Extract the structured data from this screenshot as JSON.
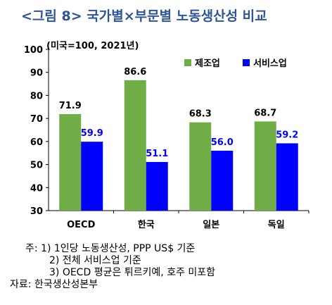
{
  "title": "<그림 8> 국가별×부문별 노동생산성 비교",
  "chart_data": {
    "type": "bar",
    "subtitle": "(미국=100, 2021년)",
    "categories": [
      "OECD",
      "한국",
      "일본",
      "독일"
    ],
    "series": [
      {
        "name": "제조업",
        "values": [
          71.9,
          86.6,
          68.3,
          68.7
        ],
        "color": "#70ad47",
        "label_color": "#000000"
      },
      {
        "name": "서비스업",
        "values": [
          59.9,
          51.1,
          56.0,
          59.2
        ],
        "color": "#0000ff",
        "label_color": "#0000ff"
      }
    ],
    "value_labels": [
      [
        "71.9",
        "86.6",
        "68.3",
        "68.7"
      ],
      [
        "59.9",
        "51.1",
        "56.0",
        "59.2"
      ]
    ],
    "ylim": [
      30,
      100
    ],
    "yticks": [
      "30",
      "40",
      "50",
      "60",
      "70",
      "80",
      "90",
      "100"
    ],
    "legend_position": "top-right",
    "grid": false
  },
  "notes": [
    "주: 1) 1인당 노동생산성, PPP US$ 기준",
    "2) 전체 서비스업 기준",
    "3) OECD 평균은 튀르키예, 호주 미포함",
    "자료: 한국생산성본부"
  ]
}
